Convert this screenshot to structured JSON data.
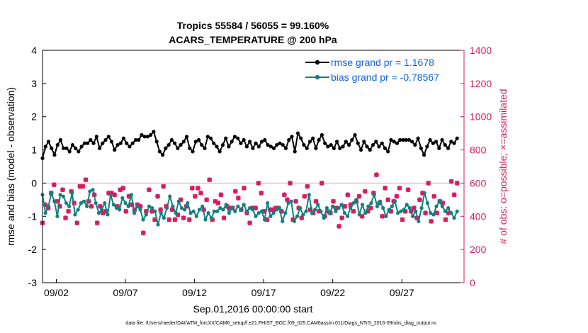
{
  "title_line1": "Tropics 55584 / 56055 = 99.160%",
  "title_line2": "ACARS_TEMPERATURE @ 200 hPa",
  "xlabel": "Sep.01,2016 00:00:00 start",
  "ylabel_left": "rmse and bias (model - observation)",
  "ylabel_right": "# of obs: o=possible; ×=assimilated",
  "footer": "data file: /Users/raeder/DAI/ATM_forcXX/CAM6_setup/f.e21.FHIST_BGC.f09_025.CAM6assim.011/Diags_NTrS_2016-09/obs_diag_output.nc",
  "colors": {
    "rmse": "#000000",
    "bias": "#108080",
    "obs": "#d81b60",
    "legend_text": "#1060e0",
    "zero_line": "#d8a8b8"
  },
  "chart_data": {
    "type": "line",
    "x_start_day": 1,
    "x_end_day": 31,
    "xlim": [
      1,
      31.5
    ],
    "ylim_left": [
      -3,
      4
    ],
    "ylim_right": [
      0,
      1400
    ],
    "yticks_left": [
      "-3",
      "-2",
      "-1",
      "0",
      "1",
      "2",
      "3",
      "4"
    ],
    "yticks_right": [
      "0",
      "200",
      "400",
      "600",
      "800",
      "1000",
      "1200",
      "1400"
    ],
    "xtick_days": [
      2,
      7,
      12,
      17,
      22,
      27
    ],
    "xtick_labels": [
      "09/02",
      "09/07",
      "09/12",
      "09/17",
      "09/22",
      "09/27"
    ],
    "legend": [
      {
        "name": "rmse grand pr = 1.1678"
      },
      {
        "name": "bias grand pr = -0.78567"
      }
    ],
    "series": [
      {
        "name": "rmse",
        "values": [
          0.75,
          1.1,
          1.25,
          1.05,
          0.85,
          1.15,
          1.3,
          1.05,
          1.05,
          0.95,
          1.15,
          1.05,
          0.95,
          1.1,
          1.2,
          1.2,
          1.3,
          1.2,
          1.4,
          1.05,
          1.2,
          1.3,
          1.4,
          1.25,
          1.0,
          1.15,
          1.2,
          1.35,
          1.2,
          1.1,
          1.2,
          1.3,
          1.3,
          1.45,
          1.4,
          1.4,
          1.45,
          1.55,
          1.25,
          0.95,
          0.85,
          1.05,
          1.15,
          1.3,
          1.2,
          1.05,
          1.15,
          1.25,
          1.4,
          1.05,
          0.95,
          1.25,
          1.3,
          1.15,
          1.05,
          1.4,
          1.35,
          1.2,
          1.1,
          0.95,
          1.15,
          1.35,
          1.1,
          1.25,
          1.4,
          1.35,
          1.2,
          1.3,
          1.1,
          1.25,
          1.05,
          1.2,
          1.1,
          1.25,
          1.3,
          1.15,
          1.1,
          1.05,
          1.15,
          1.2,
          1.15,
          1.05,
          1.3,
          1.4,
          0.95,
          1.5,
          1.35,
          1.15,
          1.05,
          1.25,
          1.35,
          1.05,
          1.3,
          1.45,
          1.2,
          1.1,
          1.15,
          1.05,
          1.25,
          1.05,
          1.1,
          1.25,
          1.15,
          1.3,
          1.45,
          1.2,
          1.0,
          1.25,
          1.1,
          1.0,
          1.15,
          1.25,
          1.1,
          1.2,
          1.05,
          0.95,
          1.3,
          1.25,
          1.2,
          1.3,
          1.3,
          1.3,
          1.3,
          1.25,
          1.15,
          1.35,
          1.05,
          0.85,
          1.1,
          1.3,
          1.2,
          1.25,
          1.05,
          1.3,
          1.15,
          1.05,
          1.25,
          1.2,
          1.35
        ]
      },
      {
        "name": "bias",
        "values": [
          -0.35,
          -0.9,
          -0.7,
          -0.3,
          -0.55,
          -1.0,
          -0.35,
          -0.4,
          -0.6,
          -0.7,
          -0.3,
          -0.95,
          -0.8,
          -0.6,
          -0.55,
          -0.7,
          -0.25,
          -0.2,
          -0.6,
          -0.9,
          -0.8,
          -0.6,
          -0.95,
          -0.35,
          -0.65,
          -0.75,
          -0.8,
          -0.45,
          -0.6,
          -0.7,
          -0.35,
          -0.9,
          -0.7,
          -0.8,
          -1.1,
          -0.95,
          -0.7,
          -0.75,
          -0.85,
          -1.25,
          -0.9,
          -1.05,
          -0.75,
          -0.4,
          -0.7,
          -0.9,
          -0.55,
          -0.75,
          -0.8,
          -0.6,
          -0.9,
          -0.85,
          -1.0,
          -0.8,
          -0.7,
          -1.1,
          -0.9,
          -1.05,
          -0.85,
          -0.85,
          -0.75,
          -0.8,
          -0.65,
          -0.9,
          -0.75,
          -0.85,
          -0.7,
          -0.8,
          -0.65,
          -0.85,
          -0.75,
          -0.8,
          -1.0,
          -0.9,
          -0.85,
          -1.1,
          -0.6,
          -1.0,
          -0.9,
          -0.8,
          -0.75,
          -1.15,
          -0.9,
          -0.6,
          -0.55,
          -1.15,
          -1.0,
          -0.75,
          -0.95,
          -0.85,
          -0.35,
          -0.9,
          -0.8,
          -0.65,
          -0.85,
          -1.05,
          -0.75,
          -0.9,
          -0.7,
          -0.85,
          -0.75,
          -0.65,
          -0.9,
          -1.0,
          -0.75,
          -0.6,
          -0.5,
          -0.95,
          -0.65,
          -0.9,
          -0.7,
          -0.6,
          -0.35,
          -0.7,
          -0.55,
          -0.75,
          -1.0,
          -0.8,
          -0.7,
          -0.55,
          -0.9,
          -0.85,
          -0.8,
          -0.65,
          -0.75,
          -1.0,
          -0.85,
          -1.15,
          -0.75,
          -0.3,
          -0.6,
          -0.9,
          -0.95,
          -0.7,
          -0.55,
          -0.7,
          -0.85,
          -0.75,
          -0.9,
          -1.05,
          -0.85
        ]
      },
      {
        "name": "obs_assimilated",
        "values": [
          360,
          470,
          450,
          540,
          590,
          490,
          460,
          560,
          390,
          430,
          550,
          480,
          360,
          580,
          580,
          620,
          490,
          460,
          530,
          360,
          460,
          420,
          430,
          540,
          540,
          530,
          460,
          560,
          570,
          430,
          520,
          470,
          440,
          470,
          460,
          300,
          430,
          560,
          430,
          380,
          520,
          440,
          580,
          460,
          380,
          440,
          380,
          410,
          500,
          390,
          460,
          380,
          570,
          520,
          570,
          540,
          440,
          500,
          620,
          380,
          490,
          480,
          530,
          390,
          460,
          450,
          450,
          550,
          510,
          440,
          570,
          420,
          360,
          450,
          450,
          600,
          540,
          430,
          380,
          440,
          440,
          450,
          450,
          430,
          530,
          500,
          600,
          380,
          490,
          450,
          390,
          520,
          580,
          440,
          420,
          490,
          430,
          600,
          400,
          430,
          420,
          490,
          450,
          340,
          390,
          460,
          530,
          470,
          430,
          490,
          520,
          400,
          550,
          430,
          450,
          540,
          650,
          480,
          400,
          570,
          500,
          430,
          490,
          520,
          570,
          380,
          430,
          560,
          430,
          450,
          390,
          500,
          540,
          420,
          600,
          370,
          520,
          420,
          490,
          480,
          380,
          420,
          610,
          530,
          600
        ]
      },
      {
        "name": "obs_possible",
        "values": [
          360,
          470,
          450,
          540,
          590,
          490,
          460,
          560,
          390,
          430,
          550,
          480,
          360,
          580,
          580,
          620,
          490,
          460,
          530,
          360,
          460,
          420,
          430,
          540,
          540,
          530,
          460,
          560,
          570,
          430,
          520,
          470,
          440,
          470,
          460,
          300,
          430,
          560,
          430,
          380,
          520,
          440,
          580,
          460,
          380,
          440,
          380,
          410,
          500,
          390,
          460,
          380,
          570,
          520,
          570,
          540,
          440,
          500,
          620,
          380,
          490,
          480,
          530,
          390,
          460,
          450,
          450,
          550,
          510,
          440,
          570,
          420,
          360,
          450,
          450,
          600,
          540,
          430,
          380,
          440,
          440,
          450,
          450,
          430,
          530,
          500,
          600,
          380,
          490,
          450,
          390,
          520,
          580,
          440,
          420,
          490,
          430,
          600,
          400,
          430,
          420,
          490,
          450,
          340,
          390,
          460,
          530,
          470,
          430,
          490,
          520,
          400,
          550,
          430,
          450,
          540,
          650,
          480,
          400,
          570,
          500,
          430,
          490,
          520,
          570,
          380,
          430,
          560,
          430,
          450,
          390,
          500,
          540,
          420,
          600,
          370,
          520,
          420,
          490,
          480,
          380,
          420,
          610,
          530,
          600
        ]
      }
    ]
  }
}
